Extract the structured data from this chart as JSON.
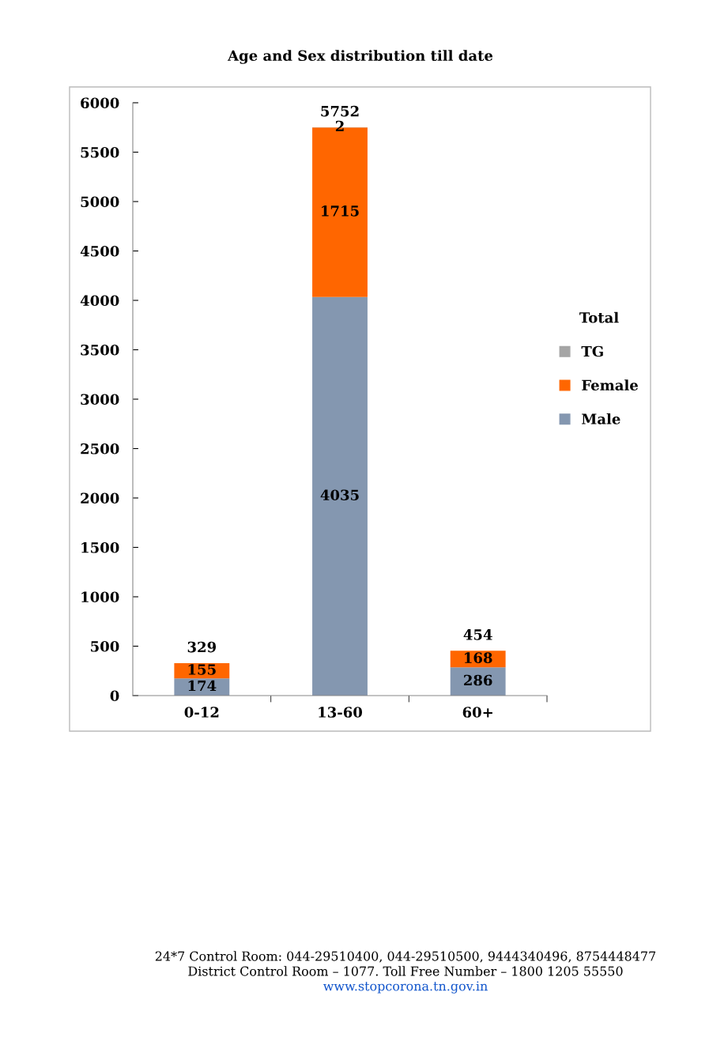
{
  "chart_data": {
    "type": "bar",
    "title": "Age and Sex distribution till date",
    "categories": [
      "0-12",
      "13-60",
      "60+"
    ],
    "stacked": true,
    "ylim": [
      0,
      6000
    ],
    "yticks": [
      0,
      500,
      1000,
      1500,
      2000,
      2500,
      3000,
      3500,
      4000,
      4500,
      5000,
      5500,
      6000
    ],
    "series": [
      {
        "name": "Male",
        "color": "#8497b0",
        "values": [
          174,
          4035,
          286
        ],
        "value_labels": [
          "174",
          "4035",
          "286"
        ]
      },
      {
        "name": "Female",
        "color": "#ff6600",
        "values": [
          155,
          1715,
          168
        ],
        "value_labels": [
          "155",
          "1715",
          "168"
        ]
      },
      {
        "name": "TG",
        "color": "#a5a5a5",
        "values": [
          0,
          2,
          0
        ],
        "value_labels": [
          null,
          "2",
          null
        ]
      }
    ],
    "totals": [
      "329",
      "5752",
      "454"
    ],
    "legend": "right",
    "legend_title": "Total",
    "grid": false,
    "annotations": [
      "24*7 Control Room: 044-29510400, 044-29510500, 9444340496, 8754448477",
      "District Control Room – 1077. Toll Free Number – 1800 1205 55550",
      "www.stopcorona.tn.gov.in"
    ]
  }
}
